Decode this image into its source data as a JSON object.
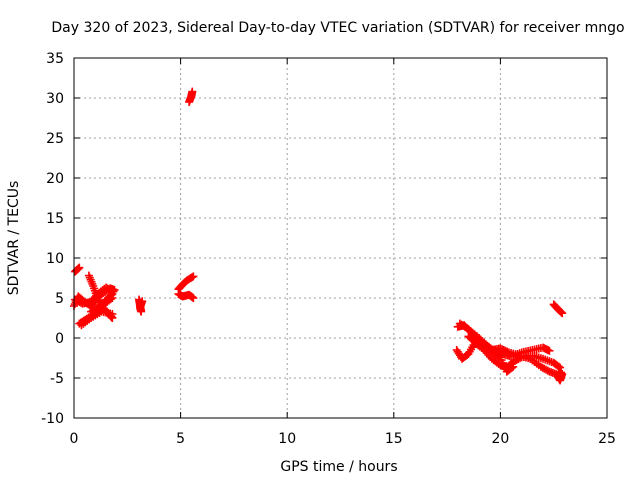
{
  "chart_data": {
    "type": "scatter",
    "title": "Day 320 of 2023, Sidereal Day-to-day VTEC variation (SDTVAR) for receiver mngo",
    "xlabel": "GPS time / hours",
    "ylabel": "SDTVAR / TECUs",
    "xlim": [
      0,
      25
    ],
    "ylim": [
      -10,
      35
    ],
    "x_ticks": [
      0,
      5,
      10,
      15,
      20,
      25
    ],
    "y_ticks": [
      -10,
      -5,
      0,
      5,
      10,
      15,
      20,
      25,
      30,
      35
    ],
    "grid": true,
    "legend": "none",
    "marker": "plus",
    "series": [
      {
        "name": "SDTVAR",
        "color": "#ff0000",
        "segments": [
          [
            [
              0.05,
              8.3
            ],
            [
              0.25,
              8.8
            ]
          ],
          [
            [
              0.0,
              4.0
            ],
            [
              0.2,
              5.2
            ],
            [
              0.5,
              4.5
            ],
            [
              0.8,
              4.0
            ],
            [
              1.0,
              4.8
            ],
            [
              1.3,
              5.5
            ],
            [
              1.7,
              6.2
            ],
            [
              1.9,
              6.0
            ]
          ],
          [
            [
              0.05,
              4.8
            ],
            [
              0.4,
              4.3
            ],
            [
              0.8,
              4.5
            ],
            [
              1.1,
              5.5
            ],
            [
              1.5,
              6.3
            ],
            [
              1.85,
              5.8
            ]
          ],
          [
            [
              0.25,
              1.8
            ],
            [
              0.6,
              2.4
            ],
            [
              1.0,
              3.2
            ],
            [
              1.4,
              4.2
            ],
            [
              1.8,
              5.0
            ]
          ],
          [
            [
              0.35,
              1.6
            ],
            [
              0.8,
              2.5
            ],
            [
              1.3,
              3.3
            ],
            [
              1.8,
              3.0
            ]
          ],
          [
            [
              0.7,
              7.8
            ],
            [
              0.9,
              6.5
            ],
            [
              1.1,
              5.0
            ],
            [
              1.4,
              3.7
            ],
            [
              1.7,
              2.8
            ],
            [
              1.8,
              2.5
            ]
          ],
          [
            [
              0.8,
              3.3
            ],
            [
              1.2,
              4.0
            ],
            [
              1.6,
              5.0
            ],
            [
              1.8,
              5.5
            ]
          ],
          [
            [
              3.05,
              4.8
            ],
            [
              3.1,
              4.0
            ],
            [
              3.15,
              3.3
            ],
            [
              3.1,
              3.8
            ],
            [
              3.2,
              4.6
            ]
          ],
          [
            [
              4.9,
              6.1
            ],
            [
              5.1,
              6.7
            ],
            [
              5.3,
              7.2
            ],
            [
              5.6,
              7.7
            ]
          ],
          [
            [
              4.9,
              5.5
            ],
            [
              5.1,
              5.2
            ],
            [
              5.4,
              5.4
            ],
            [
              5.6,
              5.0
            ]
          ],
          [
            [
              5.4,
              29.5
            ],
            [
              5.5,
              30.2
            ],
            [
              5.55,
              30.8
            ]
          ],
          [
            [
              17.95,
              -1.5
            ],
            [
              18.2,
              -2.6
            ],
            [
              18.5,
              -2.0
            ],
            [
              18.8,
              -0.6
            ],
            [
              19.2,
              -1.4
            ],
            [
              19.6,
              -2.6
            ],
            [
              20.0,
              -3.4
            ],
            [
              20.3,
              -3.7
            ],
            [
              20.6,
              -3.0
            ],
            [
              21.0,
              -2.4
            ],
            [
              21.5,
              -2.2
            ],
            [
              22.0,
              -2.6
            ],
            [
              22.5,
              -3.1
            ],
            [
              22.8,
              -3.7
            ]
          ],
          [
            [
              18.0,
              1.4
            ],
            [
              18.3,
              1.6
            ],
            [
              18.6,
              0.8
            ],
            [
              18.9,
              -0.2
            ],
            [
              19.3,
              -0.8
            ],
            [
              19.7,
              -1.6
            ],
            [
              20.1,
              -2.0
            ],
            [
              20.5,
              -2.3
            ],
            [
              21.0,
              -1.8
            ],
            [
              21.5,
              -1.5
            ],
            [
              22.0,
              -1.2
            ],
            [
              22.3,
              -1.6
            ]
          ],
          [
            [
              18.1,
              1.8
            ],
            [
              18.5,
              1.1
            ],
            [
              19.0,
              0.0
            ],
            [
              19.4,
              -1.0
            ],
            [
              19.7,
              -1.9
            ],
            [
              20.0,
              -2.4
            ],
            [
              20.3,
              -4.2
            ],
            [
              20.6,
              -3.6
            ]
          ],
          [
            [
              18.5,
              0.2
            ],
            [
              18.8,
              -0.4
            ],
            [
              19.2,
              -1.2
            ],
            [
              19.6,
              -1.5
            ],
            [
              20.0,
              -1.3
            ],
            [
              20.4,
              -1.8
            ],
            [
              20.9,
              -2.2
            ],
            [
              21.4,
              -2.6
            ],
            [
              21.9,
              -3.6
            ],
            [
              22.3,
              -4.2
            ],
            [
              22.7,
              -4.6
            ],
            [
              22.85,
              -4.3
            ]
          ],
          [
            [
              22.7,
              -4.8
            ],
            [
              22.8,
              -5.3
            ],
            [
              22.9,
              -4.5
            ]
          ],
          [
            [
              22.5,
              4.2
            ],
            [
              22.7,
              3.6
            ],
            [
              22.9,
              3.1
            ]
          ]
        ]
      }
    ]
  }
}
